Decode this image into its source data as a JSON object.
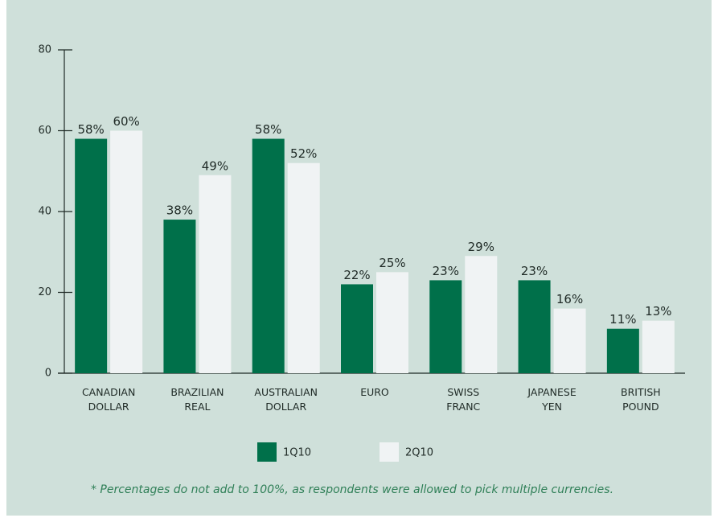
{
  "chart_data": {
    "type": "bar",
    "categories": [
      "CANADIAN DOLLAR",
      "BRAZILIAN REAL",
      "AUSTRALIAN DOLLAR",
      "EURO",
      "SWISS FRANC",
      "JAPANESE YEN",
      "BRITISH POUND"
    ],
    "series": [
      {
        "name": "1Q10",
        "color": "#00704a",
        "values": [
          58,
          38,
          58,
          22,
          23,
          23,
          11
        ],
        "value_labels": [
          "58%",
          "38%",
          "58%",
          "22%",
          "23%",
          "23%",
          "11%"
        ]
      },
      {
        "name": "2Q10",
        "color": "#f0f3f4",
        "values": [
          60,
          49,
          52,
          25,
          29,
          16,
          13
        ],
        "value_labels": [
          "60%",
          "49%",
          "52%",
          "25%",
          "29%",
          "16%",
          "13%"
        ]
      }
    ],
    "ylim": [
      0,
      80
    ],
    "yticks": [
      0,
      20,
      40,
      60,
      80
    ],
    "footnote": "* Percentages do not add to 100%, as respondents were allowed to pick multiple currencies."
  }
}
